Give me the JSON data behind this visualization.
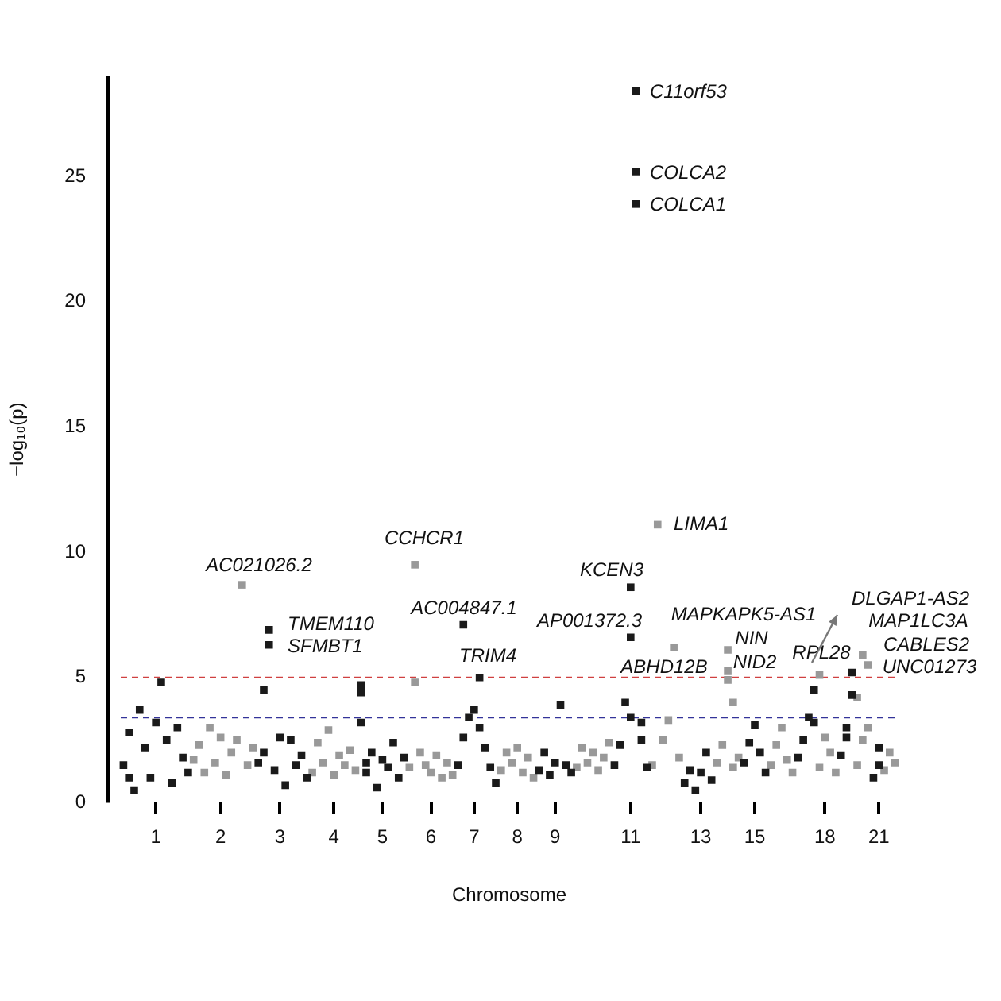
{
  "chart_data": {
    "type": "scatter",
    "xlabel": "Chromosome",
    "ylabel": "−log₁₀(p)",
    "marker": "square",
    "grid": false,
    "legend": false,
    "ylim": [
      0,
      29
    ],
    "yticks": [
      0,
      5,
      10,
      15,
      20,
      25
    ],
    "categories": [
      null,
      null,
      null,
      null,
      null,
      null,
      "1",
      null,
      null,
      null,
      null,
      null,
      null,
      null,
      null,
      null,
      null,
      null,
      "2",
      null,
      null,
      null,
      null,
      null,
      null,
      null,
      null,
      null,
      null,
      "3",
      null,
      null,
      null,
      null,
      null,
      null,
      null,
      null,
      null,
      "4",
      null,
      null,
      null,
      null,
      null,
      null,
      null,
      null,
      "5",
      null,
      null,
      null,
      null,
      null,
      null,
      null,
      null,
      "6",
      null,
      null,
      null,
      null,
      null,
      null,
      null,
      "7",
      null,
      null,
      null,
      null,
      null,
      null,
      null,
      "8",
      null,
      null,
      null,
      null,
      null,
      null,
      "9",
      null,
      null,
      null,
      null,
      null,
      null,
      null,
      null,
      null,
      null,
      null,
      null,
      null,
      "11",
      null,
      null,
      null,
      null,
      null,
      null,
      null,
      null,
      null,
      null,
      null,
      null,
      "13",
      null,
      null,
      null,
      null,
      null,
      null,
      null,
      null,
      null,
      "15",
      null,
      null,
      null,
      null,
      null,
      null,
      null,
      null,
      null,
      null,
      null,
      null,
      "18",
      null,
      null,
      null,
      null,
      null,
      null,
      null,
      null,
      null,
      "21",
      null,
      null,
      null
    ],
    "series": [
      {
        "color": "#1a1a1a",
        "values": [
          1.5,
          2.8,
          0.5,
          3.7,
          2.2,
          1.0,
          3.2,
          4.8,
          2.5,
          0.8,
          3.0,
          1.8,
          1.2,
          null,
          null,
          null,
          null,
          null,
          null,
          null,
          null,
          null,
          null,
          null,
          null,
          1.6,
          4.5,
          6.9,
          1.3,
          2.6,
          0.7,
          2.5,
          1.5,
          1.9,
          1.0,
          null,
          null,
          null,
          null,
          null,
          null,
          null,
          null,
          null,
          4.7,
          1.6,
          2.0,
          0.6,
          1.7,
          1.4,
          2.4,
          1.0,
          1.8,
          null,
          null,
          null,
          null,
          null,
          null,
          null,
          null,
          null,
          1.5,
          7.1,
          3.4,
          3.7,
          5.0,
          2.2,
          1.4,
          0.8,
          null,
          null,
          null,
          null,
          null,
          null,
          null,
          1.3,
          2.0,
          1.1,
          1.6,
          3.9,
          1.5,
          1.2,
          null,
          null,
          null,
          null,
          null,
          null,
          null,
          1.5,
          2.3,
          4.0,
          8.6,
          28.4,
          3.2,
          1.4,
          null,
          null,
          null,
          null,
          null,
          null,
          0.8,
          1.3,
          0.5,
          1.2,
          2.0,
          0.9,
          null,
          null,
          null,
          null,
          null,
          1.6,
          2.4,
          3.1,
          2.0,
          1.2,
          null,
          null,
          null,
          null,
          null,
          1.8,
          2.5,
          3.4,
          4.5,
          null,
          null,
          null,
          null,
          1.9,
          3.0,
          5.2,
          null,
          null,
          null,
          1.0,
          2.2,
          null,
          null,
          null
        ]
      },
      {
        "color": "#1a1a1a",
        "values": [
          null,
          1.0,
          null,
          null,
          null,
          null,
          null,
          null,
          null,
          null,
          null,
          null,
          null,
          null,
          null,
          null,
          null,
          null,
          null,
          null,
          null,
          null,
          null,
          null,
          null,
          null,
          2.0,
          6.3,
          null,
          null,
          null,
          null,
          null,
          null,
          null,
          null,
          null,
          null,
          null,
          null,
          null,
          null,
          null,
          null,
          4.4,
          1.2,
          null,
          null,
          null,
          null,
          null,
          null,
          null,
          null,
          null,
          null,
          null,
          null,
          null,
          null,
          null,
          null,
          null,
          2.6,
          null,
          null,
          3.0,
          null,
          null,
          null,
          null,
          null,
          null,
          null,
          null,
          null,
          null,
          null,
          null,
          null,
          null,
          null,
          null,
          null,
          null,
          null,
          null,
          null,
          null,
          null,
          null,
          null,
          null,
          null,
          6.6,
          25.2,
          2.5,
          null,
          null,
          null,
          null,
          null,
          null,
          null,
          null,
          null,
          null,
          null,
          null,
          null,
          null,
          null,
          null,
          null,
          null,
          null,
          null,
          null,
          null,
          null,
          null,
          null,
          null,
          null,
          null,
          null,
          null,
          null,
          3.2,
          null,
          null,
          null,
          null,
          null,
          2.6,
          4.3,
          null,
          null,
          null,
          null,
          1.5,
          null,
          null,
          null
        ]
      },
      {
        "color": "#1a1a1a",
        "values": [
          null,
          null,
          null,
          null,
          null,
          null,
          null,
          null,
          null,
          null,
          null,
          null,
          null,
          null,
          null,
          null,
          null,
          null,
          null,
          null,
          null,
          null,
          null,
          null,
          null,
          null,
          null,
          null,
          null,
          null,
          null,
          null,
          null,
          null,
          null,
          null,
          null,
          null,
          null,
          null,
          null,
          null,
          null,
          null,
          3.2,
          null,
          null,
          null,
          null,
          null,
          null,
          null,
          null,
          null,
          null,
          null,
          null,
          null,
          null,
          null,
          null,
          null,
          null,
          null,
          null,
          null,
          null,
          null,
          null,
          null,
          null,
          null,
          null,
          null,
          null,
          null,
          null,
          null,
          null,
          null,
          null,
          null,
          null,
          null,
          null,
          null,
          null,
          null,
          null,
          null,
          null,
          null,
          null,
          null,
          3.4,
          23.9,
          null,
          null,
          null,
          null,
          null,
          null,
          null,
          null,
          null,
          null,
          null,
          null,
          null,
          null,
          null,
          null,
          null,
          null,
          null,
          null,
          null,
          null,
          null,
          null,
          null,
          null,
          null,
          null,
          null,
          null,
          null,
          null,
          null,
          null,
          null,
          null,
          null,
          null,
          null,
          null,
          null,
          null,
          null,
          null,
          null,
          null,
          null,
          null
        ]
      },
      {
        "color": "#999999",
        "values": [
          null,
          null,
          null,
          null,
          null,
          null,
          null,
          null,
          null,
          null,
          null,
          null,
          null,
          1.7,
          2.3,
          1.2,
          3.0,
          1.6,
          2.6,
          1.1,
          2.0,
          2.5,
          8.7,
          1.5,
          2.2,
          null,
          null,
          null,
          null,
          null,
          null,
          null,
          null,
          null,
          null,
          1.2,
          2.4,
          1.6,
          2.9,
          1.1,
          1.9,
          1.5,
          2.1,
          1.3,
          null,
          null,
          null,
          null,
          null,
          null,
          null,
          null,
          null,
          1.4,
          9.5,
          2.0,
          1.5,
          1.2,
          1.9,
          1.0,
          1.6,
          1.1,
          null,
          null,
          null,
          null,
          null,
          null,
          null,
          null,
          1.3,
          2.0,
          1.6,
          2.2,
          1.2,
          1.8,
          1.0,
          null,
          null,
          null,
          null,
          null,
          null,
          null,
          1.4,
          2.2,
          1.6,
          2.0,
          1.3,
          1.8,
          2.4,
          null,
          null,
          null,
          null,
          null,
          null,
          null,
          1.5,
          11.1,
          2.5,
          3.3,
          6.2,
          1.8,
          null,
          null,
          null,
          null,
          null,
          null,
          1.6,
          2.3,
          6.1,
          1.4,
          1.8,
          null,
          null,
          null,
          null,
          null,
          1.5,
          2.3,
          3.0,
          1.7,
          1.2,
          null,
          null,
          null,
          null,
          5.1,
          2.6,
          2.0,
          1.2,
          null,
          null,
          null,
          4.2,
          5.9,
          5.5,
          null,
          null,
          1.3,
          2.0,
          1.6
        ]
      },
      {
        "color": "#999999",
        "values": [
          null,
          null,
          null,
          null,
          null,
          null,
          null,
          null,
          null,
          null,
          null,
          null,
          null,
          null,
          null,
          null,
          null,
          null,
          null,
          null,
          null,
          null,
          null,
          null,
          null,
          null,
          null,
          null,
          null,
          null,
          null,
          null,
          null,
          null,
          null,
          null,
          null,
          null,
          null,
          null,
          null,
          null,
          null,
          null,
          null,
          null,
          null,
          null,
          null,
          null,
          null,
          null,
          null,
          null,
          4.8,
          null,
          null,
          null,
          null,
          null,
          null,
          null,
          null,
          null,
          null,
          null,
          null,
          null,
          null,
          null,
          null,
          null,
          null,
          null,
          null,
          null,
          null,
          null,
          null,
          null,
          null,
          null,
          null,
          null,
          null,
          null,
          null,
          null,
          null,
          null,
          null,
          null,
          null,
          null,
          null,
          null,
          null,
          null,
          null,
          null,
          null,
          null,
          null,
          null,
          null,
          null,
          null,
          null,
          null,
          null,
          null,
          null,
          5.25,
          4.0,
          null,
          null,
          null,
          null,
          null,
          null,
          null,
          null,
          null,
          null,
          null,
          null,
          null,
          null,
          null,
          1.4,
          null,
          null,
          null,
          null,
          null,
          null,
          1.5,
          2.5,
          3.0,
          null,
          null,
          null,
          null,
          null
        ]
      },
      {
        "color": "#999999",
        "values": [
          null,
          null,
          null,
          null,
          null,
          null,
          null,
          null,
          null,
          null,
          null,
          null,
          null,
          null,
          null,
          null,
          null,
          null,
          null,
          null,
          null,
          null,
          null,
          null,
          null,
          null,
          null,
          null,
          null,
          null,
          null,
          null,
          null,
          null,
          null,
          null,
          null,
          null,
          null,
          null,
          null,
          null,
          null,
          null,
          null,
          null,
          null,
          null,
          null,
          null,
          null,
          null,
          null,
          null,
          null,
          null,
          null,
          null,
          null,
          null,
          null,
          null,
          null,
          null,
          null,
          null,
          null,
          null,
          null,
          null,
          null,
          null,
          null,
          null,
          null,
          null,
          null,
          null,
          null,
          null,
          null,
          null,
          null,
          null,
          null,
          null,
          null,
          null,
          null,
          null,
          null,
          null,
          null,
          null,
          null,
          null,
          null,
          null,
          null,
          null,
          null,
          null,
          null,
          null,
          null,
          null,
          null,
          null,
          null,
          null,
          null,
          null,
          4.9,
          null,
          null,
          null,
          null,
          null,
          null,
          null,
          null,
          null,
          null,
          null,
          null,
          null,
          null,
          null,
          null,
          null,
          null,
          null,
          null,
          null,
          null,
          null,
          null,
          null,
          null,
          null,
          null,
          null,
          null,
          null
        ]
      }
    ],
    "ref_lines": [
      {
        "axis": "y",
        "value": 5,
        "color": "#d04040",
        "line_style": "dashed"
      },
      {
        "axis": "y",
        "value": 3.4,
        "color": "#333399",
        "line_style": "dashed"
      }
    ],
    "annotations": [
      "C11orf53",
      "COLCA2",
      "COLCA1",
      "LIMA1",
      "KCEN3",
      "AP001372.3",
      "MAPKAPK5-AS1",
      "NIN",
      "NID2",
      "ABHD12B",
      "RPL28",
      "DLGAP1-AS2",
      "MAP1LC3A",
      "CABLES2",
      "UNC01273",
      "AC021026.2",
      "TMEM110",
      "SFMBT1",
      "CCHCR1",
      "AC004847.1",
      "TRIM4"
    ]
  }
}
